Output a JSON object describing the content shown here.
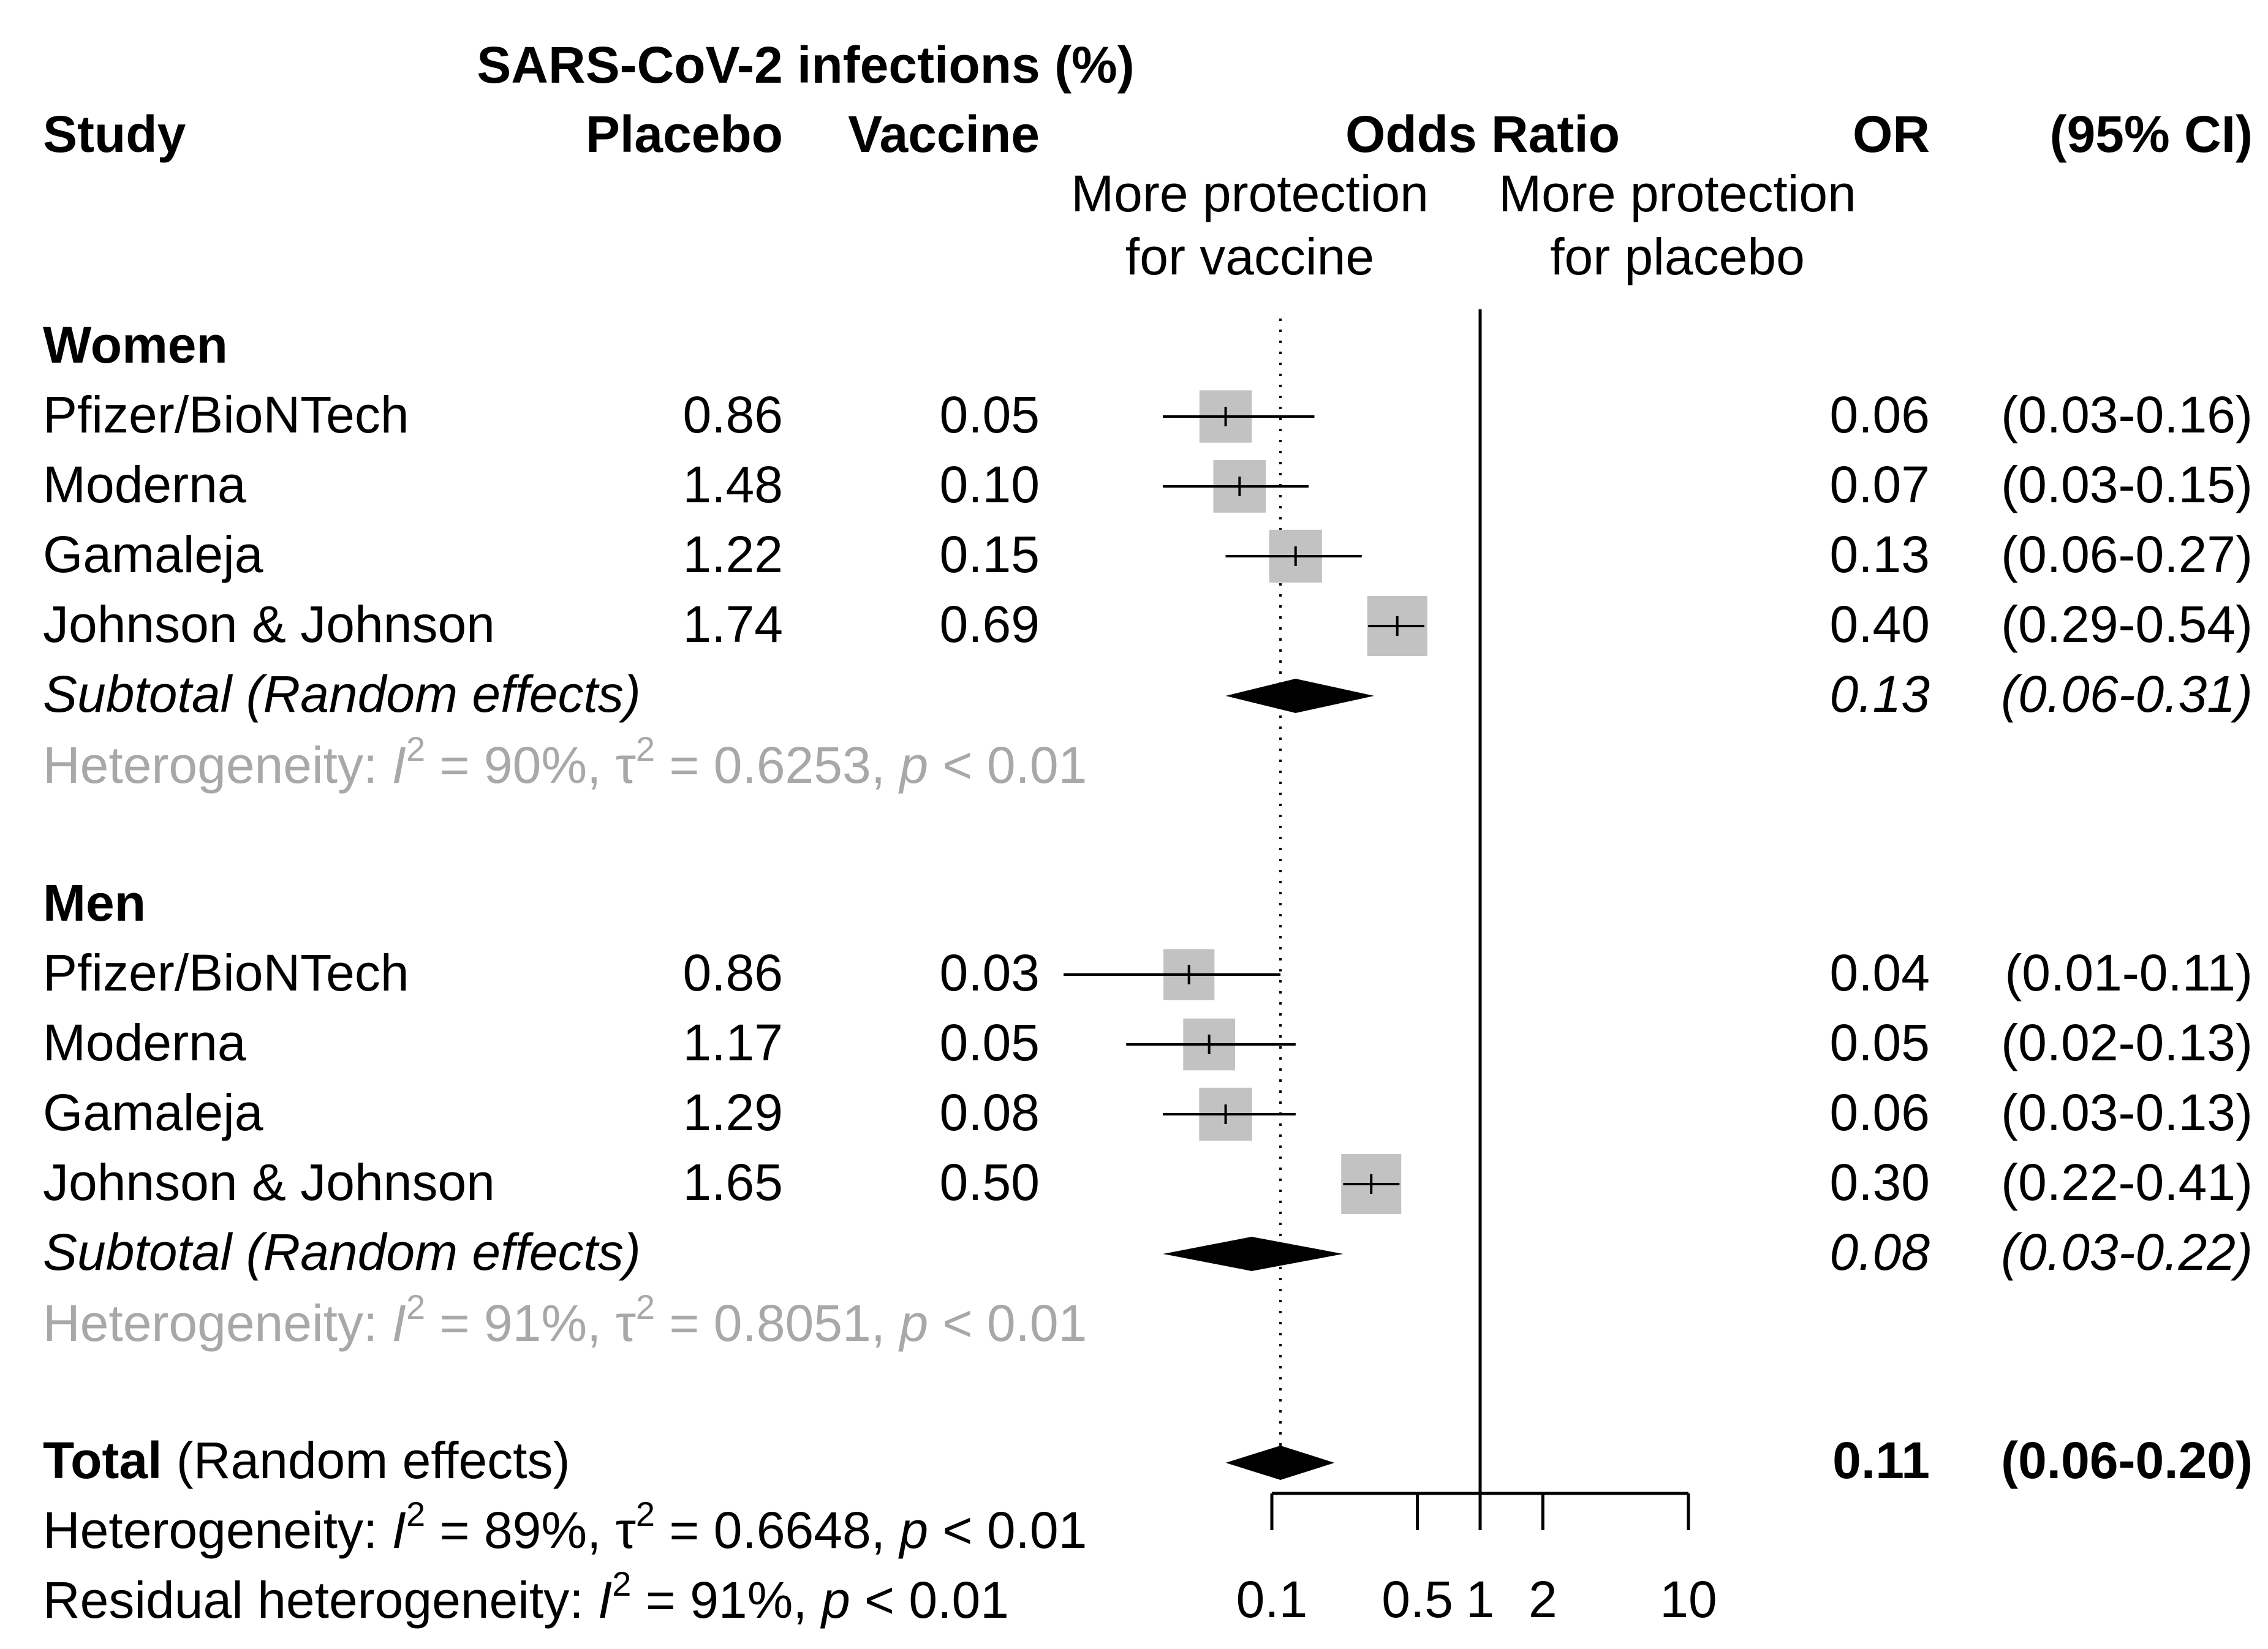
{
  "header": {
    "group_title": "SARS-CoV-2 infections (%)",
    "col_study": "Study",
    "col_placebo": "Placebo",
    "col_vaccine": "Vaccine",
    "col_effect": "Odds Ratio",
    "col_or": "OR",
    "col_ci": "(95% CI)",
    "left_note_1": "More protection",
    "left_note_2": "for vaccine",
    "right_note_1": "More protection",
    "right_note_2": "for placebo"
  },
  "chart_data": {
    "type": "forest",
    "scale": "log",
    "xlim": [
      0.1,
      10
    ],
    "reference_line": 1,
    "overall_line": 0.11,
    "axis_ticks": [
      {
        "value": 0.1,
        "label": "0.1"
      },
      {
        "value": 0.5,
        "label": "0.5"
      },
      {
        "value": 1,
        "label": "1"
      },
      {
        "value": 2,
        "label": "2"
      },
      {
        "value": 10,
        "label": "10"
      }
    ],
    "groups": [
      {
        "title": "Women",
        "studies": [
          {
            "name": "Pfizer/BioNTech",
            "placebo": "0.86",
            "vaccine": "0.05",
            "or": 0.06,
            "lower": 0.03,
            "upper": 0.16,
            "or_label": "0.06",
            "ci_label": "(0.03-0.16)"
          },
          {
            "name": "Moderna",
            "placebo": "1.48",
            "vaccine": "0.10",
            "or": 0.07,
            "lower": 0.03,
            "upper": 0.15,
            "or_label": "0.07",
            "ci_label": "(0.03-0.15)"
          },
          {
            "name": "Gamaleja",
            "placebo": "1.22",
            "vaccine": "0.15",
            "or": 0.13,
            "lower": 0.06,
            "upper": 0.27,
            "or_label": "0.13",
            "ci_label": "(0.06-0.27)"
          },
          {
            "name": "Johnson & Johnson",
            "placebo": "1.74",
            "vaccine": "0.69",
            "or": 0.4,
            "lower": 0.29,
            "upper": 0.54,
            "or_label": "0.40",
            "ci_label": "(0.29-0.54)"
          }
        ],
        "subtotal": {
          "label": "Subtotal (Random effects)",
          "or": 0.13,
          "lower": 0.06,
          "upper": 0.31,
          "or_label": "0.13",
          "ci_label": "(0.06-0.31)"
        },
        "heterogeneity": {
          "prefix": "Heterogeneity: ",
          "I": "I",
          "exp1": "2",
          "mid": " = 90%, ",
          "tau": "τ",
          "exp2": "2",
          "tail": " = 0.6253, ",
          "p": "p",
          "end": " < 0.01"
        }
      },
      {
        "title": "Men",
        "studies": [
          {
            "name": "Pfizer/BioNTech",
            "placebo": "0.86",
            "vaccine": "0.03",
            "or": 0.04,
            "lower": 0.01,
            "upper": 0.11,
            "or_label": "0.04",
            "ci_label": "(0.01-0.11)"
          },
          {
            "name": "Moderna",
            "placebo": "1.17",
            "vaccine": "0.05",
            "or": 0.05,
            "lower": 0.02,
            "upper": 0.13,
            "or_label": "0.05",
            "ci_label": "(0.02-0.13)"
          },
          {
            "name": "Gamaleja",
            "placebo": "1.29",
            "vaccine": "0.08",
            "or": 0.06,
            "lower": 0.03,
            "upper": 0.13,
            "or_label": "0.06",
            "ci_label": "(0.03-0.13)"
          },
          {
            "name": "Johnson & Johnson",
            "placebo": "1.65",
            "vaccine": "0.50",
            "or": 0.3,
            "lower": 0.22,
            "upper": 0.41,
            "or_label": "0.30",
            "ci_label": "(0.22-0.41)"
          }
        ],
        "subtotal": {
          "label": "Subtotal (Random effects)",
          "or": 0.08,
          "lower": 0.03,
          "upper": 0.22,
          "or_label": "0.08",
          "ci_label": "(0.03-0.22)"
        },
        "heterogeneity": {
          "prefix": "Heterogeneity: ",
          "I": "I",
          "exp1": "2",
          "mid": " = 91%, ",
          "tau": "τ",
          "exp2": "2",
          "tail": " = 0.8051, ",
          "p": "p",
          "end": " < 0.01"
        }
      }
    ],
    "total": {
      "label_bold": "Total",
      "label_rest": " (Random effects)",
      "or": 0.11,
      "lower": 0.06,
      "upper": 0.2,
      "or_label": "0.11",
      "ci_label": "(0.06-0.20)",
      "heterogeneity": {
        "prefix": "Heterogeneity: ",
        "I": "I",
        "exp1": "2",
        "mid": " = 89%, ",
        "tau": "τ",
        "exp2": "2",
        "tail": " = 0.6648, ",
        "p": "p",
        "end": " < 0.01"
      },
      "residual": {
        "prefix": "Residual heterogeneity: ",
        "I": "I",
        "exp1": "2",
        "mid": " = 91%, ",
        "p": "p",
        "end": " < 0.01"
      }
    }
  }
}
